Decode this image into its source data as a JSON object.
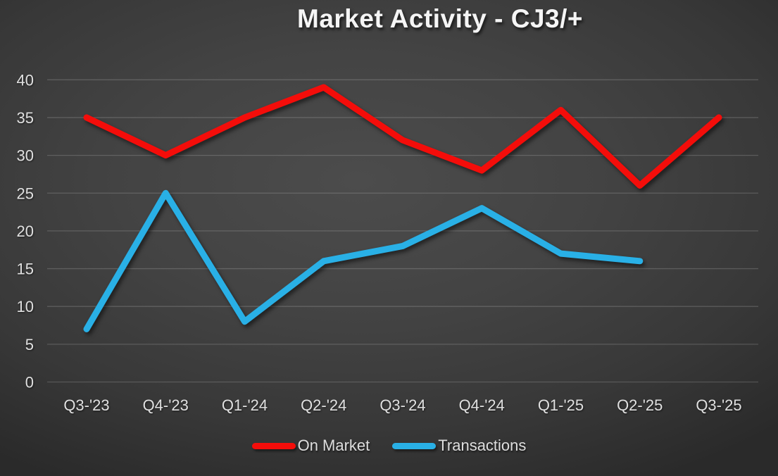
{
  "title": "Market Activity - CJ3/+",
  "chart_data": {
    "type": "line",
    "title": "Market Activity - CJ3/+",
    "categories": [
      "Q3-'23",
      "Q4-'23",
      "Q1-'24",
      "Q2-'24",
      "Q3-'24",
      "Q4-'24",
      "Q1-'25",
      "Q2-'25",
      "Q3-'25"
    ],
    "series": [
      {
        "name": "On Market",
        "color": "#f40d0a",
        "values": [
          35,
          30,
          35,
          39,
          32,
          28,
          36,
          26,
          35
        ]
      },
      {
        "name": "Transactions",
        "color": "#29b0e6",
        "values": [
          7,
          25,
          8,
          16,
          18,
          23,
          17,
          16,
          null
        ]
      }
    ],
    "xlabel": "",
    "ylabel": "",
    "ylim": [
      0,
      40
    ],
    "ytick_step": 5,
    "yticks": [
      0,
      5,
      10,
      15,
      20,
      25,
      30,
      35,
      40
    ],
    "grid": "horizontal",
    "legend_position": "bottom",
    "colors": {
      "background_center": "#4c4c4c",
      "background_edge": "#2a2a2a",
      "gridline": "#5c5c5c",
      "text": "#e0e0e0",
      "title_text": "#f5f5f5"
    }
  }
}
